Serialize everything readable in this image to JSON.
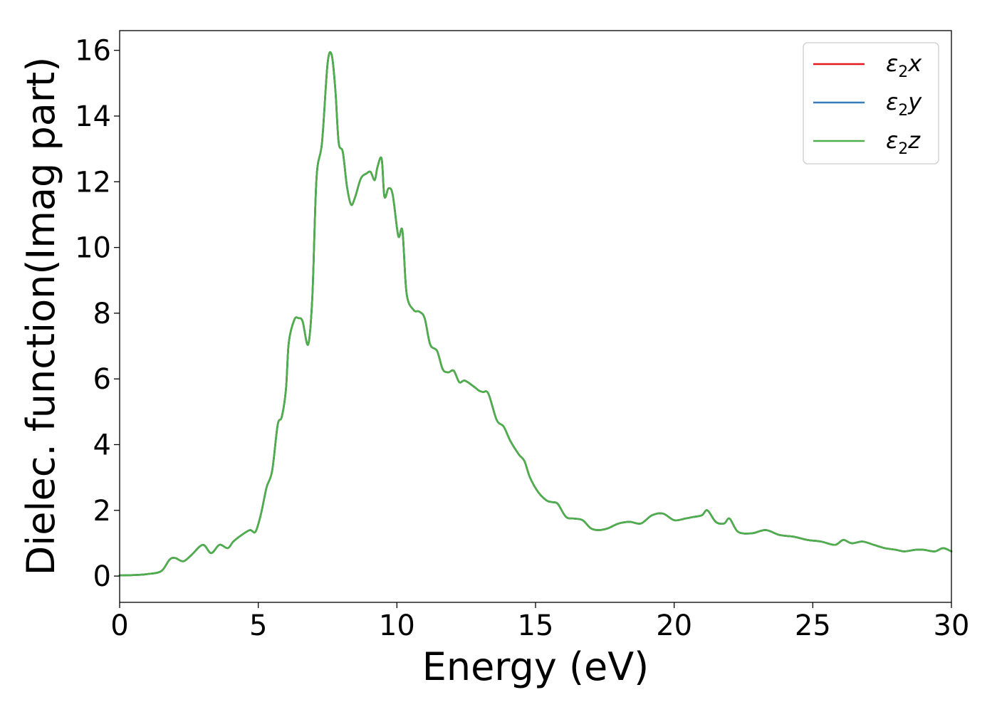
{
  "chart_data": {
    "type": "line",
    "xlabel": "Energy (eV)",
    "ylabel": "Dielec. function(Imag part)",
    "xlim": [
      0,
      30
    ],
    "ylim": [
      -0.8,
      16.6
    ],
    "xticks": [
      0,
      5,
      10,
      15,
      20,
      25,
      30
    ],
    "yticks": [
      0,
      2,
      4,
      6,
      8,
      10,
      12,
      14,
      16
    ],
    "grid": false,
    "legend_position": "top-right",
    "series": [
      {
        "name": "ε₂x",
        "label_main": "ε",
        "label_sub": "2",
        "label_axis": "x",
        "color": "#e41a1c"
      },
      {
        "name": "ε₂y",
        "label_main": "ε",
        "label_sub": "2",
        "label_axis": "y",
        "color": "#377eb8"
      },
      {
        "name": "ε₂z",
        "label_main": "ε",
        "label_sub": "2",
        "label_axis": "z",
        "color": "#4daf4a"
      }
    ],
    "x": [
      0,
      0.5,
      1.0,
      1.5,
      1.8,
      2.0,
      2.3,
      2.6,
      3.0,
      3.3,
      3.6,
      3.9,
      4.1,
      4.4,
      4.7,
      4.9,
      5.1,
      5.3,
      5.5,
      5.7,
      5.85,
      6.0,
      6.1,
      6.3,
      6.45,
      6.6,
      6.8,
      6.95,
      7.1,
      7.3,
      7.5,
      7.65,
      7.78,
      7.9,
      8.05,
      8.2,
      8.35,
      8.5,
      8.7,
      8.9,
      9.05,
      9.2,
      9.3,
      9.45,
      9.55,
      9.7,
      9.85,
      10.05,
      10.2,
      10.35,
      10.6,
      10.8,
      11.0,
      11.2,
      11.45,
      11.65,
      11.85,
      12.05,
      12.25,
      12.45,
      12.8,
      12.95,
      13.1,
      13.3,
      13.6,
      13.85,
      14.1,
      14.4,
      14.6,
      14.8,
      15.1,
      15.4,
      15.6,
      15.8,
      16.1,
      16.4,
      16.7,
      17.0,
      17.3,
      17.6,
      18.0,
      18.4,
      18.8,
      19.2,
      19.6,
      20.0,
      20.4,
      20.7,
      21.0,
      21.2,
      21.5,
      21.8,
      22.0,
      22.3,
      22.8,
      23.3,
      23.8,
      24.3,
      24.8,
      25.3,
      25.8,
      26.1,
      26.4,
      26.8,
      27.2,
      27.6,
      28.0,
      28.3,
      28.7,
      29.0,
      29.4,
      29.7,
      30.0
    ],
    "values": [
      0.02,
      0.03,
      0.06,
      0.15,
      0.5,
      0.55,
      0.45,
      0.65,
      0.95,
      0.7,
      0.95,
      0.85,
      1.05,
      1.25,
      1.4,
      1.35,
      1.9,
      2.7,
      3.2,
      4.6,
      4.85,
      5.7,
      7.1,
      7.8,
      7.85,
      7.75,
      7.05,
      8.5,
      12.1,
      13.2,
      15.6,
      15.85,
      14.8,
      13.2,
      12.9,
      11.85,
      11.3,
      11.55,
      12.1,
      12.25,
      12.3,
      12.05,
      12.45,
      12.7,
      11.55,
      11.8,
      11.6,
      10.35,
      10.5,
      8.6,
      8.1,
      8.05,
      7.85,
      7.05,
      6.85,
      6.3,
      6.2,
      6.25,
      5.9,
      5.95,
      5.75,
      5.65,
      5.6,
      5.55,
      4.75,
      4.55,
      4.1,
      3.7,
      3.5,
      3.0,
      2.55,
      2.3,
      2.25,
      2.2,
      1.8,
      1.75,
      1.7,
      1.45,
      1.4,
      1.45,
      1.6,
      1.65,
      1.6,
      1.85,
      1.9,
      1.7,
      1.75,
      1.8,
      1.85,
      2.0,
      1.65,
      1.6,
      1.75,
      1.35,
      1.3,
      1.4,
      1.25,
      1.2,
      1.1,
      1.05,
      0.95,
      1.1,
      1.0,
      1.05,
      0.95,
      0.85,
      0.8,
      0.75,
      0.8,
      0.8,
      0.75,
      0.85,
      0.75
    ]
  }
}
